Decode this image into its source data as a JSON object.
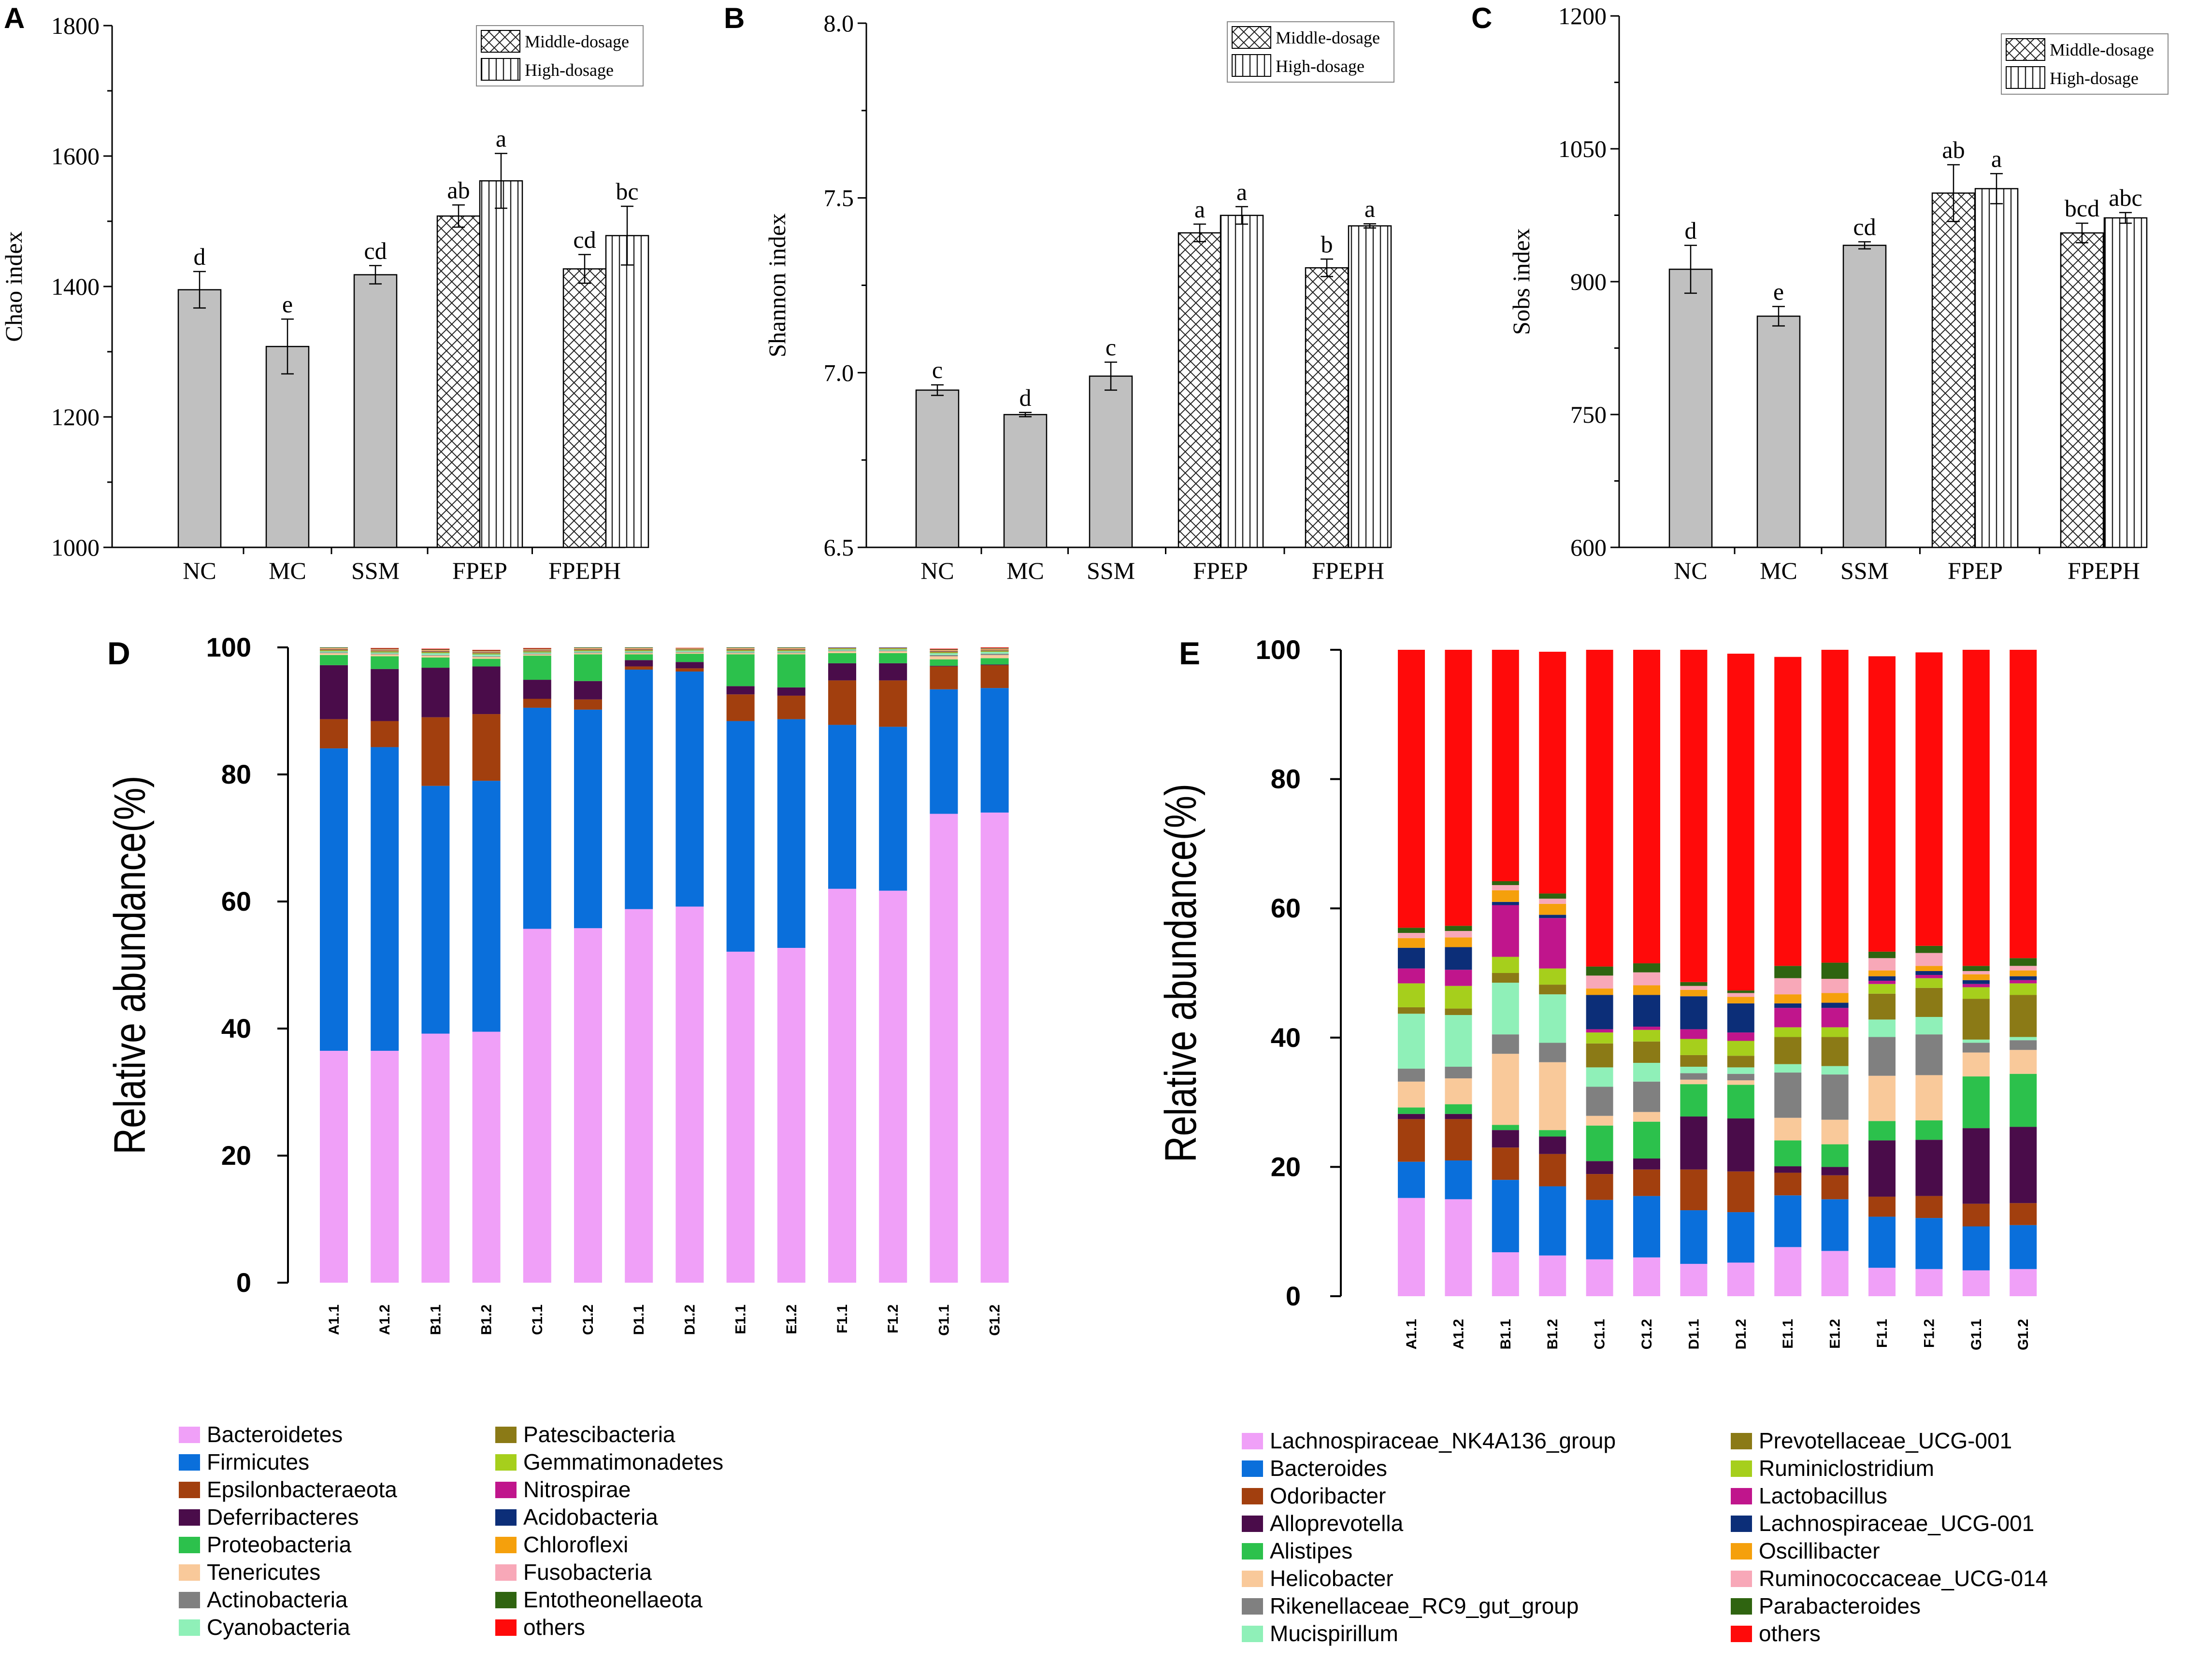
{
  "figure": {
    "panel_letters": [
      "A",
      "B",
      "C",
      "D",
      "E"
    ]
  },
  "chart_data": [
    {
      "panel": "A",
      "type": "bar",
      "title": "",
      "ylabel": "Chao index",
      "xlabel": "",
      "ylim": [
        1000,
        1800
      ],
      "yticks": [
        1000,
        1200,
        1400,
        1600,
        1800
      ],
      "ytick_labels": [
        "1000",
        "1200",
        "1400",
        "1600",
        "1800"
      ],
      "groups": [
        "NC",
        "MC",
        "SSM",
        "FPEP",
        "FPEPH"
      ],
      "legend": [
        "Middle-dosage",
        "High-dosage"
      ],
      "legend_position": "top-right",
      "bars": [
        {
          "group": "NC",
          "fill": "solid",
          "value": 1395,
          "error": 28,
          "letter": "d"
        },
        {
          "group": "MC",
          "fill": "solid",
          "value": 1308,
          "error": 42,
          "letter": "e"
        },
        {
          "group": "SSM",
          "fill": "solid",
          "value": 1418,
          "error": 14,
          "letter": "cd"
        },
        {
          "group": "FPEP",
          "fill": "cross",
          "value": 1508,
          "error": 17,
          "letter": "ab"
        },
        {
          "group": "FPEP",
          "fill": "vertical",
          "value": 1562,
          "error": 42,
          "letter": "a"
        },
        {
          "group": "FPEPH",
          "fill": "cross",
          "value": 1427,
          "error": 22,
          "letter": "cd"
        },
        {
          "group": "FPEPH",
          "fill": "vertical",
          "value": 1478,
          "error": 45,
          "letter": "bc"
        }
      ]
    },
    {
      "panel": "B",
      "type": "bar",
      "title": "",
      "ylabel": "Shannon index",
      "xlabel": "",
      "ylim": [
        6.5,
        8.0
      ],
      "yticks": [
        6.5,
        7.0,
        7.5,
        8.0
      ],
      "ytick_labels": [
        "6.5",
        "7.0",
        "7.5",
        "8.0"
      ],
      "groups": [
        "NC",
        "MC",
        "SSM",
        "FPEP",
        "FPEPH"
      ],
      "legend": [
        "Middle-dosage",
        "High-dosage"
      ],
      "legend_position": "top-right",
      "bars": [
        {
          "group": "NC",
          "fill": "solid",
          "value": 6.95,
          "error": 0.015,
          "letter": "c"
        },
        {
          "group": "MC",
          "fill": "solid",
          "value": 6.88,
          "error": 0.006,
          "letter": "d"
        },
        {
          "group": "SSM",
          "fill": "solid",
          "value": 6.99,
          "error": 0.04,
          "letter": "c"
        },
        {
          "group": "FPEP",
          "fill": "cross",
          "value": 7.4,
          "error": 0.025,
          "letter": "a"
        },
        {
          "group": "FPEP",
          "fill": "vertical",
          "value": 7.45,
          "error": 0.025,
          "letter": "a"
        },
        {
          "group": "FPEPH",
          "fill": "cross",
          "value": 7.3,
          "error": 0.025,
          "letter": "b"
        },
        {
          "group": "FPEPH",
          "fill": "vertical",
          "value": 7.42,
          "error": 0.006,
          "letter": "a"
        }
      ]
    },
    {
      "panel": "C",
      "type": "bar",
      "title": "",
      "ylabel": "Sobs index",
      "xlabel": "",
      "ylim": [
        600,
        1200
      ],
      "yticks": [
        600,
        750,
        900,
        1050,
        1200
      ],
      "ytick_labels": [
        "600",
        "750",
        "900",
        "1050",
        "1200"
      ],
      "groups": [
        "NC",
        "MC",
        "SSM",
        "FPEP",
        "FPEPH"
      ],
      "legend": [
        "Middle-dosage",
        "High-dosage"
      ],
      "legend_position": "top-right",
      "bars": [
        {
          "group": "NC",
          "fill": "solid",
          "value": 914,
          "error": 27,
          "letter": "d"
        },
        {
          "group": "MC",
          "fill": "solid",
          "value": 861,
          "error": 11,
          "letter": "e"
        },
        {
          "group": "SSM",
          "fill": "solid",
          "value": 941,
          "error": 4,
          "letter": "cd"
        },
        {
          "group": "FPEP",
          "fill": "cross",
          "value": 1000,
          "error": 32,
          "letter": "ab"
        },
        {
          "group": "FPEP",
          "fill": "vertical",
          "value": 1005,
          "error": 17,
          "letter": "a"
        },
        {
          "group": "FPEPH",
          "fill": "cross",
          "value": 955,
          "error": 11,
          "letter": "bcd"
        },
        {
          "group": "FPEPH",
          "fill": "vertical",
          "value": 972,
          "error": 6,
          "letter": "abc"
        }
      ]
    },
    {
      "panel": "D",
      "type": "bar",
      "stacked": true,
      "title": "",
      "ylabel": "Relative abundance(%)",
      "xlabel": "",
      "ylim": [
        0,
        100
      ],
      "yticks": [
        0,
        20,
        40,
        60,
        80,
        100
      ],
      "ytick_labels": [
        "0",
        "20",
        "40",
        "60",
        "80",
        "100"
      ],
      "categories": [
        "A1.1",
        "A1.2",
        "B1.1",
        "B1.2",
        "C1.1",
        "C1.2",
        "D1.1",
        "D1.2",
        "E1.1",
        "E1.2",
        "F1.1",
        "F1.2",
        "G1.1",
        "G1.2"
      ],
      "series": [
        {
          "name": "Bacteroidetes",
          "color": "#f0a0f8",
          "values": [
            36.5,
            36.5,
            39.2,
            39.5,
            55.7,
            55.8,
            58.8,
            59.2,
            52.1,
            52.7,
            62.0,
            61.7,
            73.8,
            74.0
          ]
        },
        {
          "name": "Firmicutes",
          "color": "#0a6fdb",
          "values": [
            47.6,
            47.8,
            39.0,
            39.5,
            34.8,
            34.4,
            37.7,
            37.0,
            36.3,
            36.0,
            25.8,
            25.8,
            19.6,
            19.6
          ]
        },
        {
          "name": "Epsilonbacteraeota",
          "color": "#a23f0e",
          "values": [
            4.6,
            4.1,
            10.8,
            10.5,
            1.4,
            1.6,
            0.5,
            0.5,
            4.2,
            3.7,
            7.0,
            7.3,
            3.6,
            3.6
          ]
        },
        {
          "name": "Deferribacteres",
          "color": "#4a0c4a",
          "values": [
            8.5,
            8.2,
            7.8,
            7.5,
            3.0,
            2.9,
            1.0,
            1.0,
            1.3,
            1.3,
            2.7,
            2.7,
            0.1,
            0.1
          ]
        },
        {
          "name": "Proteobacteria",
          "color": "#2cc14c",
          "values": [
            1.6,
            2.0,
            1.6,
            1.2,
            3.8,
            4.2,
            0.9,
            1.3,
            5.0,
            5.2,
            1.6,
            1.6,
            1.0,
            1.0
          ]
        },
        {
          "name": "Tenericutes",
          "color": "#f9c99a",
          "values": [
            0.3,
            0.3,
            0.3,
            0.3,
            0.2,
            0.2,
            0.2,
            0.2,
            0.2,
            0.2,
            0.3,
            0.3,
            0.5,
            0.5
          ]
        },
        {
          "name": "Actinobacteria",
          "color": "#808080",
          "values": [
            0.1,
            0.1,
            0.1,
            0.1,
            0.1,
            0.1,
            0.1,
            0.1,
            0.1,
            0.1,
            0.1,
            0.1,
            0.2,
            0.2
          ]
        },
        {
          "name": "Cyanobacteria",
          "color": "#8ff0b8",
          "values": [
            0.2,
            0.2,
            0.3,
            0.3,
            0.2,
            0.2,
            0.2,
            0.2,
            0.2,
            0.2,
            0.2,
            0.2,
            0.3,
            0.3
          ]
        },
        {
          "name": "Patescibacteria",
          "color": "#8b7a16",
          "values": [
            0.1,
            0.1,
            0.1,
            0.1,
            0.1,
            0.1,
            0.1,
            0.1,
            0.1,
            0.1,
            0.1,
            0.1,
            0.1,
            0.1
          ]
        },
        {
          "name": "Gemmatimonadetes",
          "color": "#a6cf1c",
          "values": [
            0.1,
            0.1,
            0.1,
            0.1,
            0.1,
            0.1,
            0.1,
            0.1,
            0.1,
            0.1,
            0.1,
            0.1,
            0.1,
            0.1
          ]
        },
        {
          "name": "Nitrospirae",
          "color": "#c0158c",
          "values": [
            0.05,
            0.05,
            0.05,
            0.05,
            0.05,
            0.05,
            0.05,
            0.05,
            0.05,
            0.05,
            0.05,
            0.05,
            0.05,
            0.05
          ]
        },
        {
          "name": "Acidobacteria",
          "color": "#0c2e78",
          "values": [
            0.05,
            0.05,
            0.05,
            0.05,
            0.05,
            0.05,
            0.05,
            0.05,
            0.05,
            0.05,
            0.05,
            0.05,
            0.05,
            0.05
          ]
        },
        {
          "name": "Chloroflexi",
          "color": "#f5a00c",
          "values": [
            0.1,
            0.1,
            0.1,
            0.1,
            0.1,
            0.1,
            0.1,
            0.1,
            0.1,
            0.1,
            0.1,
            0.1,
            0.1,
            0.1
          ]
        },
        {
          "name": "Fusobacteria",
          "color": "#f8a8b8",
          "values": [
            0.1,
            0.1,
            0.1,
            0.1,
            0.1,
            0.1,
            0.1,
            0.1,
            0.1,
            0.1,
            0.1,
            0.1,
            0.1,
            0.1
          ]
        },
        {
          "name": "Entotheonellaeota",
          "color": "#2f6410",
          "values": [
            0.1,
            0.1,
            0.1,
            0.1,
            0.1,
            0.1,
            0.1,
            0.1,
            0.1,
            0.1,
            0.1,
            0.1,
            0.1,
            0.1
          ]
        },
        {
          "name": "others",
          "color": "#ff0a0a",
          "values": [
            0.1,
            0.1,
            0.1,
            0.1,
            0.1,
            0.1,
            0.1,
            0.1,
            0.1,
            0.1,
            0.1,
            0.1,
            0.1,
            0.1
          ]
        }
      ]
    },
    {
      "panel": "E",
      "type": "bar",
      "stacked": true,
      "title": "",
      "ylabel": "Relative abundance(%)",
      "xlabel": "",
      "ylim": [
        0,
        100
      ],
      "yticks": [
        0,
        20,
        40,
        60,
        80,
        100
      ],
      "ytick_labels": [
        "0",
        "20",
        "40",
        "60",
        "80",
        "100"
      ],
      "categories": [
        "A1.1",
        "A1.2",
        "B1.1",
        "B1.2",
        "C1.1",
        "C1.2",
        "D1.1",
        "D1.2",
        "E1.1",
        "E1.2",
        "F1.1",
        "F1.2",
        "G1.1",
        "G1.2"
      ],
      "series": [
        {
          "name": "Lachnospiraceae_NK4A136_group",
          "color": "#f0a0f8",
          "values": [
            15.2,
            15.0,
            6.8,
            6.3,
            5.7,
            6.0,
            5.0,
            5.2,
            7.6,
            7.0,
            4.4,
            4.2,
            4.0,
            4.2
          ]
        },
        {
          "name": "Bacteroides",
          "color": "#0a6fdb",
          "values": [
            5.6,
            6.0,
            11.2,
            10.7,
            9.2,
            9.5,
            8.3,
            7.8,
            8.0,
            8.0,
            7.9,
            7.9,
            6.8,
            6.8
          ]
        },
        {
          "name": "Odoribacter",
          "color": "#a23f0e",
          "values": [
            6.6,
            6.4,
            5.0,
            5.0,
            4.0,
            4.1,
            6.3,
            6.3,
            3.5,
            3.7,
            3.1,
            3.4,
            3.5,
            3.4
          ]
        },
        {
          "name": "Alloprevotella",
          "color": "#4a0c4a",
          "values": [
            0.8,
            0.8,
            2.7,
            2.7,
            2.0,
            1.7,
            8.2,
            8.2,
            1.0,
            1.3,
            8.7,
            8.7,
            11.7,
            11.8
          ]
        },
        {
          "name": "Alistipes",
          "color": "#2cc14c",
          "values": [
            1.0,
            1.5,
            0.8,
            1.0,
            5.5,
            5.7,
            5.0,
            5.2,
            4.0,
            3.5,
            3.0,
            3.0,
            8.0,
            8.2
          ]
        },
        {
          "name": "Helicobacter",
          "color": "#f9c99a",
          "values": [
            4.0,
            4.0,
            11.0,
            10.5,
            1.5,
            1.5,
            0.7,
            0.7,
            3.5,
            3.8,
            7.0,
            7.0,
            3.7,
            3.7
          ]
        },
        {
          "name": "Rikenellaceae_RC9_gut_group",
          "color": "#808080",
          "values": [
            2.0,
            1.8,
            3.0,
            3.0,
            4.5,
            4.7,
            1.0,
            1.0,
            7.0,
            7.0,
            6.0,
            6.3,
            1.5,
            1.5
          ]
        },
        {
          "name": "Mucispirillum",
          "color": "#8ff0b8",
          "values": [
            8.5,
            8.0,
            8.0,
            7.5,
            3.0,
            2.9,
            1.0,
            1.0,
            1.3,
            1.3,
            2.7,
            2.7,
            0.5,
            0.5
          ]
        },
        {
          "name": "Prevotellaceae_UCG-001",
          "color": "#8b7a16",
          "values": [
            1.0,
            1.0,
            1.5,
            1.5,
            3.7,
            3.3,
            1.8,
            1.8,
            4.2,
            4.5,
            4.0,
            4.5,
            6.3,
            6.5
          ]
        },
        {
          "name": "Ruminiclostridium",
          "color": "#a6cf1c",
          "values": [
            3.7,
            3.5,
            2.5,
            2.5,
            1.7,
            1.8,
            2.5,
            2.3,
            1.5,
            1.5,
            1.5,
            1.5,
            1.8,
            1.8
          ]
        },
        {
          "name": "Lactobacillus",
          "color": "#c0158c",
          "values": [
            2.3,
            2.5,
            8.0,
            7.8,
            0.5,
            0.5,
            1.5,
            1.3,
            3.0,
            3.0,
            0.5,
            0.5,
            0.5,
            0.5
          ]
        },
        {
          "name": "Lachnospiraceae_UCG-001",
          "color": "#0c2e78",
          "values": [
            3.2,
            3.5,
            0.5,
            0.5,
            5.3,
            4.9,
            5.1,
            4.5,
            0.7,
            0.8,
            0.7,
            0.6,
            0.6,
            0.6
          ]
        },
        {
          "name": "Oscillibacter",
          "color": "#f5a00c",
          "values": [
            1.5,
            1.5,
            1.8,
            1.7,
            1.0,
            1.5,
            1.0,
            1.0,
            1.4,
            1.5,
            0.9,
            0.8,
            0.9,
            0.9
          ]
        },
        {
          "name": "Ruminococcaceae_UCG-014",
          "color": "#f8a8b8",
          "values": [
            0.8,
            1.0,
            0.8,
            0.8,
            2.0,
            2.0,
            0.6,
            0.6,
            2.5,
            2.2,
            1.9,
            2.0,
            0.5,
            0.7
          ]
        },
        {
          "name": "Parabacteroides",
          "color": "#2f6410",
          "values": [
            0.8,
            0.8,
            0.6,
            0.8,
            1.4,
            1.4,
            0.6,
            0.4,
            1.9,
            2.5,
            1.0,
            1.1,
            0.8,
            1.2
          ]
        },
        {
          "name": "others",
          "color": "#ff0a0a",
          "values": [
            43.0,
            42.7,
            35.8,
            37.4,
            49.0,
            48.5,
            51.6,
            52.1,
            47.8,
            48.4,
            45.7,
            45.4,
            48.9,
            48.3
          ]
        }
      ]
    }
  ]
}
